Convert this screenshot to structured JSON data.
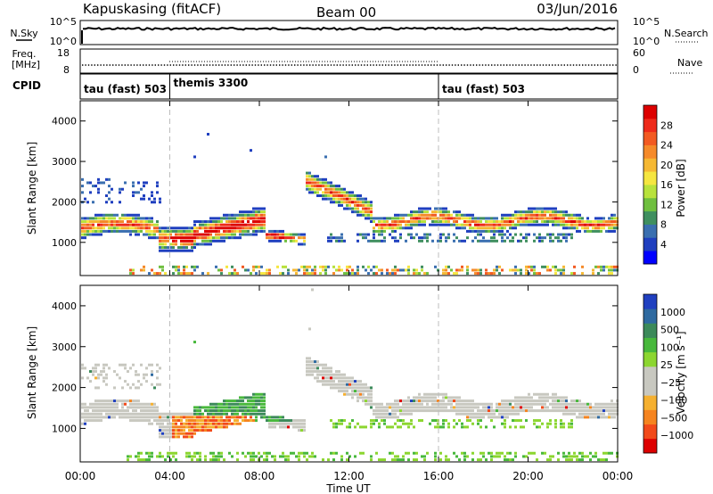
{
  "header": {
    "station": "Kapuskasing (fitACF)",
    "beam": "Beam 00",
    "date": "03/Jun/2016"
  },
  "strips": {
    "nsky": {
      "label": "N.Sky",
      "ticks": [
        "10^5",
        "10^0"
      ]
    },
    "nsearch": {
      "label": "N.Search",
      "ticks": [
        "10^5",
        "10^0"
      ]
    },
    "freq": {
      "label_line1": "Freq.",
      "label_line2": "[MHz]",
      "ticks": [
        "18",
        "8"
      ]
    },
    "nave": {
      "label": "Nave",
      "ticks": [
        "60",
        "0"
      ]
    },
    "cpid": {
      "label": "CPID",
      "segments": [
        {
          "name": "tau (fast) 503",
          "start_h": 0,
          "end_h": 4
        },
        {
          "name": "themis 3300",
          "start_h": 4,
          "end_h": 16
        },
        {
          "name": "tau (fast) 503",
          "start_h": 16,
          "end_h": 24
        }
      ]
    }
  },
  "chart_data": [
    {
      "type": "heatmap",
      "quantity": "Power",
      "ylabel": "Slant Range [km]",
      "colorbar_label": "Power [dB]",
      "colorbar_ticks": [
        "28",
        "24",
        "20",
        "16",
        "12",
        "8",
        "4"
      ],
      "colorbar_colors": [
        "#0000ff",
        "#1f3fbf",
        "#3a6fb0",
        "#3f8f5f",
        "#6fbf3f",
        "#b8e23c",
        "#f5e640",
        "#f5b833",
        "#f58a2a",
        "#f25a22",
        "#ee2a1a",
        "#dd0000"
      ],
      "xlim_hours": [
        0,
        24
      ],
      "ylim_km": [
        180,
        4500
      ],
      "yticks": [
        "1000",
        "2000",
        "3000",
        "4000"
      ]
    },
    {
      "type": "heatmap",
      "quantity": "Velocity",
      "ylabel": "Slant Range [km]",
      "xlabel": "Time UT",
      "colorbar_label": "Velocity [m s⁻¹]",
      "colorbar_ticks": [
        "1000",
        "500",
        "100",
        "25",
        "−25",
        "−100",
        "−500",
        "−1000"
      ],
      "colorbar_colors": [
        "#dd0000",
        "#f24a1a",
        "#f5841f",
        "#f5b030",
        "#c8c8c0",
        "#c8c8c0",
        "#8cd630",
        "#48b83c",
        "#3c8a5a",
        "#2f6aa0",
        "#2040c0"
      ],
      "xlim_hours": [
        0,
        24
      ],
      "ylim_km": [
        180,
        4500
      ],
      "yticks": [
        "1000",
        "2000",
        "3000",
        "4000"
      ],
      "xticks": [
        "00:00",
        "04:00",
        "08:00",
        "12:00",
        "16:00",
        "20:00",
        "00:00"
      ]
    }
  ]
}
